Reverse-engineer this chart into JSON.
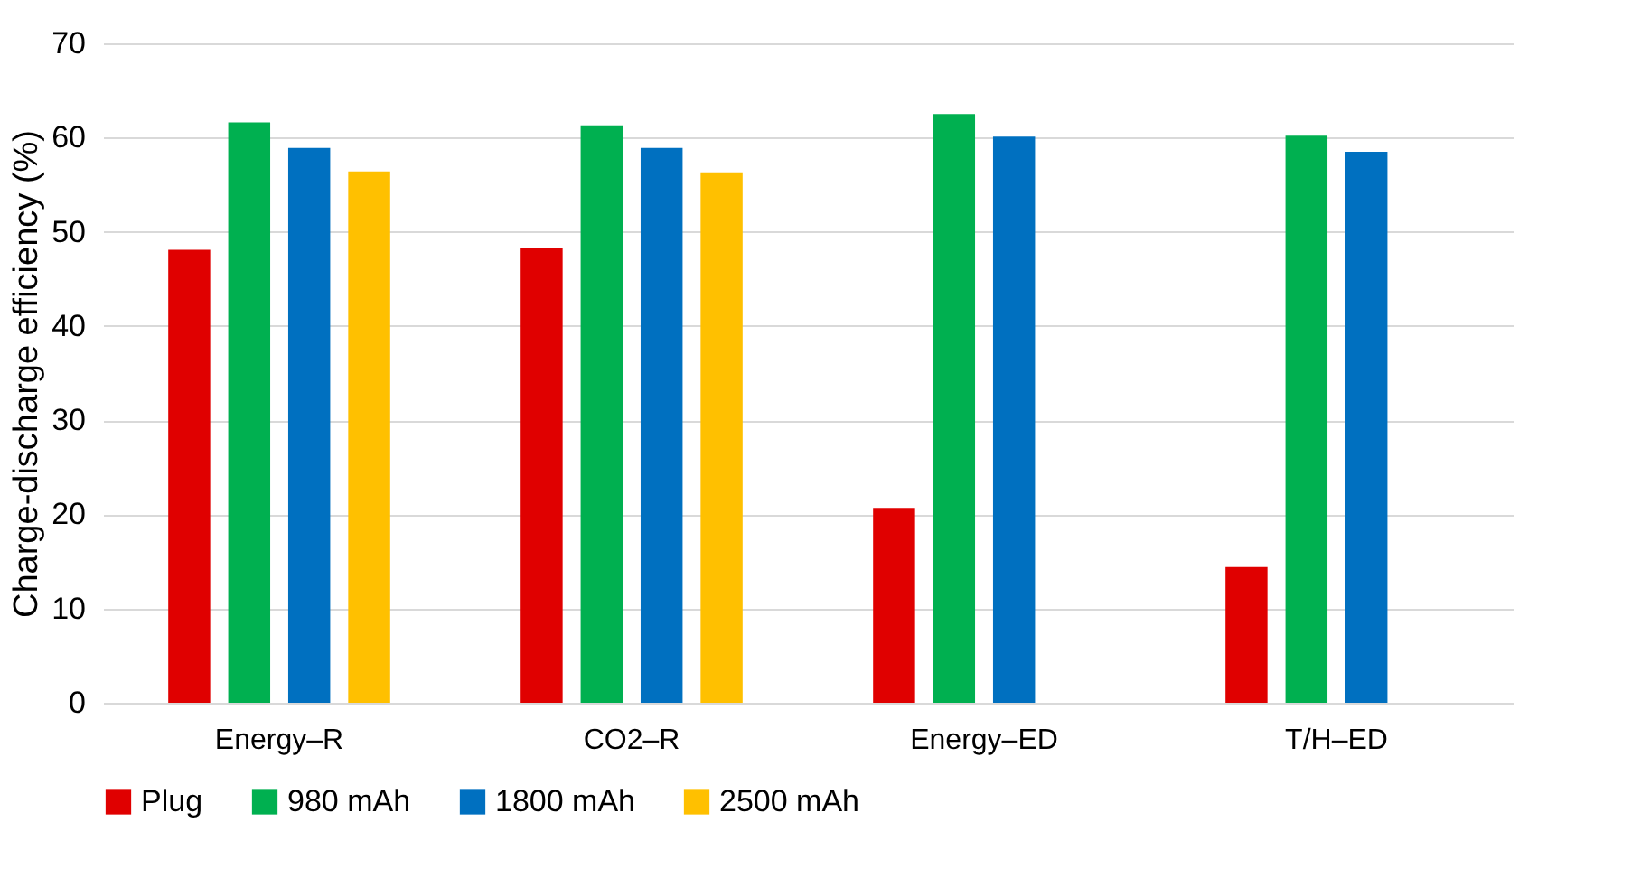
{
  "chart_data": {
    "type": "bar",
    "ylabel": "Charge-discharge efficiency (%)",
    "categories": [
      "Energy–R",
      "CO2–R",
      "Energy–ED",
      "T/H–ED"
    ],
    "series": [
      {
        "name": "Plug",
        "color": "#e00000",
        "values": [
          48.1,
          48.3,
          20.7,
          14.4
        ]
      },
      {
        "name": "980 mAh",
        "color": "#00b050",
        "values": [
          61.6,
          61.3,
          62.5,
          60.2
        ]
      },
      {
        "name": "1800 mAh",
        "color": "#0070c0",
        "values": [
          58.9,
          58.9,
          60.1,
          58.5
        ]
      },
      {
        "name": "2500 mAh",
        "color": "#ffc000",
        "values": [
          56.4,
          56.3,
          null,
          null
        ]
      }
    ],
    "ylim": [
      0,
      70
    ],
    "yticks": [
      0,
      10,
      20,
      30,
      40,
      50,
      60,
      70
    ],
    "grid": "y",
    "legend": "bottom"
  }
}
